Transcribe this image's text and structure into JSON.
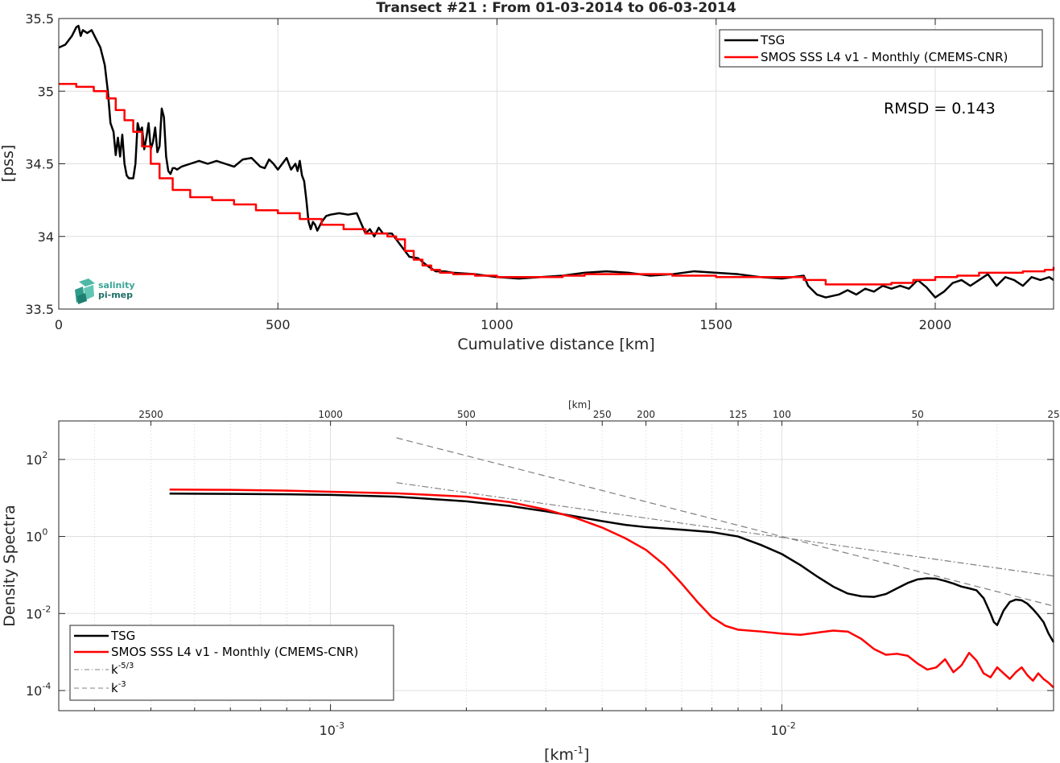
{
  "colors": {
    "tsg": "#000000",
    "smos": "#ff0000",
    "ref": "#808080"
  },
  "chart_data": [
    {
      "type": "line",
      "title": "Transect #21 : From 01-03-2014 to 06-03-2014",
      "xlabel": "Cumulative distance [km]",
      "ylabel": "[pss]",
      "xlim": [
        0,
        2270
      ],
      "ylim": [
        33.5,
        35.5
      ],
      "xticks": [
        0,
        500,
        1000,
        1500,
        2000
      ],
      "yticks": [
        33.5,
        34,
        34.5,
        35,
        35.5
      ],
      "grid": true,
      "legend_position": "top-right",
      "annotation": "RMSD = 0.143",
      "logo": {
        "line1": "salinity",
        "line2": "pi-mep"
      },
      "series": [
        {
          "name": "TSG",
          "color": "#000000",
          "x": [
            0,
            15,
            30,
            40,
            45,
            50,
            55,
            65,
            75,
            85,
            95,
            105,
            112,
            118,
            125,
            130,
            135,
            140,
            145,
            150,
            155,
            160,
            165,
            170,
            175,
            180,
            185,
            190,
            195,
            200,
            205,
            210,
            215,
            220,
            225,
            230,
            235,
            240,
            245,
            250,
            255,
            260,
            265,
            270,
            280,
            300,
            320,
            340,
            360,
            380,
            400,
            420,
            440,
            460,
            470,
            480,
            490,
            500,
            510,
            520,
            530,
            540,
            545,
            550,
            555,
            560,
            565,
            570,
            575,
            580,
            585,
            590,
            600,
            610,
            620,
            640,
            660,
            680,
            700,
            710,
            720,
            730,
            740,
            760,
            780,
            800,
            820,
            840,
            860,
            880,
            900,
            950,
            1000,
            1050,
            1100,
            1150,
            1200,
            1250,
            1300,
            1350,
            1400,
            1450,
            1500,
            1550,
            1600,
            1650,
            1700,
            1710,
            1730,
            1750,
            1780,
            1800,
            1820,
            1840,
            1860,
            1880,
            1900,
            1920,
            1940,
            1960,
            1980,
            2000,
            2020,
            2040,
            2060,
            2080,
            2100,
            2120,
            2140,
            2160,
            2180,
            2200,
            2220,
            2240,
            2260,
            2270
          ],
          "y": [
            35.3,
            35.32,
            35.38,
            35.44,
            35.45,
            35.38,
            35.42,
            35.4,
            35.42,
            35.36,
            35.3,
            35.18,
            35.0,
            34.78,
            34.72,
            34.56,
            34.68,
            34.55,
            34.7,
            34.5,
            34.42,
            34.4,
            34.4,
            34.4,
            34.5,
            34.78,
            34.72,
            34.75,
            34.6,
            34.68,
            34.78,
            34.6,
            34.65,
            34.75,
            34.58,
            34.62,
            34.88,
            34.82,
            34.55,
            34.45,
            34.43,
            34.47,
            34.47,
            34.46,
            34.48,
            34.5,
            34.52,
            34.5,
            34.52,
            34.5,
            34.48,
            34.53,
            34.54,
            34.48,
            34.47,
            34.53,
            34.5,
            34.46,
            34.5,
            34.54,
            34.46,
            34.5,
            34.45,
            34.52,
            34.42,
            34.38,
            34.25,
            34.1,
            34.05,
            34.1,
            34.08,
            34.04,
            34.1,
            34.14,
            34.15,
            34.16,
            34.15,
            34.16,
            34.02,
            34.05,
            34.0,
            34.06,
            34.02,
            34.02,
            33.94,
            33.86,
            33.85,
            33.8,
            33.76,
            33.76,
            33.75,
            33.74,
            33.72,
            33.71,
            33.72,
            33.73,
            33.75,
            33.76,
            33.75,
            33.73,
            33.74,
            33.76,
            33.75,
            33.74,
            33.72,
            33.71,
            33.73,
            33.66,
            33.6,
            33.58,
            33.6,
            33.63,
            33.6,
            33.64,
            33.62,
            33.66,
            33.64,
            33.66,
            33.64,
            33.7,
            33.65,
            33.58,
            33.62,
            33.68,
            33.7,
            33.66,
            33.7,
            33.74,
            33.66,
            33.72,
            33.7,
            33.66,
            33.72,
            33.7,
            33.72,
            33.7
          ]
        },
        {
          "name": "SMOS SSS L4 v1 - Monthly (CMEMS-CNR)",
          "color": "#ff0000",
          "x": [
            0,
            40,
            80,
            110,
            130,
            150,
            170,
            190,
            210,
            230,
            260,
            300,
            350,
            400,
            450,
            500,
            550,
            600,
            650,
            700,
            750,
            770,
            790,
            810,
            830,
            850,
            870,
            900,
            950,
            1000,
            1050,
            1100,
            1150,
            1200,
            1300,
            1400,
            1500,
            1600,
            1700,
            1750,
            1800,
            1850,
            1900,
            1950,
            2000,
            2050,
            2100,
            2150,
            2200,
            2250,
            2270
          ],
          "y": [
            35.05,
            35.03,
            35.0,
            34.95,
            34.87,
            34.8,
            34.72,
            34.62,
            34.5,
            34.4,
            34.32,
            34.27,
            34.25,
            34.22,
            34.18,
            34.16,
            34.12,
            34.08,
            34.05,
            34.02,
            34.0,
            33.98,
            33.9,
            33.84,
            33.8,
            33.77,
            33.75,
            33.74,
            33.73,
            33.72,
            33.72,
            33.72,
            33.73,
            33.74,
            33.74,
            33.73,
            33.72,
            33.72,
            33.7,
            33.67,
            33.67,
            33.67,
            33.68,
            33.7,
            33.72,
            33.73,
            33.75,
            33.75,
            33.76,
            33.77,
            33.79
          ]
        }
      ]
    },
    {
      "type": "line",
      "title": "",
      "xlabel": "[km-1]",
      "ylabel": "Density Spectra",
      "x_scale": "log",
      "y_scale": "log",
      "xlim": [
        0.00025,
        0.04
      ],
      "ylim": [
        3e-05,
        1000
      ],
      "x_major_ticks": [
        0.001,
        0.01
      ],
      "x_major_tick_labels": [
        {
          "base": "10",
          "exp": "-3"
        },
        {
          "base": "10",
          "exp": "-2"
        }
      ],
      "y_major_ticks": [
        0.0001,
        0.01,
        1,
        100
      ],
      "y_tick_labels": [
        {
          "base": "10",
          "exp": "-4"
        },
        {
          "base": "10",
          "exp": "-2"
        },
        {
          "base": "10",
          "exp": "0"
        },
        {
          "base": "10",
          "exp": "2"
        }
      ],
      "top_axis_label": "[km]",
      "top_axis_ticks": [
        2500,
        1000,
        500,
        250,
        200,
        125,
        100,
        50,
        25
      ],
      "grid": true,
      "legend_position": "bottom-left",
      "series": [
        {
          "name": "TSG",
          "color": "#000000",
          "dash": "solid",
          "x": [
            0.00044,
            0.0006,
            0.0008,
            0.001,
            0.0014,
            0.002,
            0.0025,
            0.003,
            0.0035,
            0.004,
            0.0045,
            0.005,
            0.006,
            0.007,
            0.008,
            0.009,
            0.01,
            0.011,
            0.012,
            0.013,
            0.014,
            0.015,
            0.016,
            0.017,
            0.018,
            0.019,
            0.02,
            0.021,
            0.022,
            0.023,
            0.024,
            0.025,
            0.026,
            0.027,
            0.028,
            0.029,
            0.0295,
            0.03,
            0.031,
            0.032,
            0.033,
            0.034,
            0.035,
            0.036,
            0.037,
            0.038,
            0.039,
            0.04
          ],
          "y": [
            13,
            12.8,
            12.5,
            12,
            10.8,
            8.2,
            6.2,
            4.5,
            3.3,
            2.5,
            2.0,
            1.75,
            1.5,
            1.3,
            1.0,
            0.6,
            0.35,
            0.18,
            0.09,
            0.05,
            0.033,
            0.028,
            0.027,
            0.032,
            0.045,
            0.062,
            0.077,
            0.082,
            0.08,
            0.07,
            0.06,
            0.05,
            0.045,
            0.04,
            0.025,
            0.01,
            0.006,
            0.005,
            0.012,
            0.02,
            0.023,
            0.022,
            0.018,
            0.013,
            0.009,
            0.006,
            0.003,
            0.0018
          ]
        },
        {
          "name": "SMOS SSS L4 v1 - Monthly (CMEMS-CNR)",
          "color": "#ff0000",
          "dash": "solid",
          "x": [
            0.00044,
            0.0006,
            0.0008,
            0.001,
            0.0014,
            0.002,
            0.0025,
            0.003,
            0.0035,
            0.004,
            0.0045,
            0.005,
            0.0055,
            0.006,
            0.0065,
            0.007,
            0.0075,
            0.008,
            0.009,
            0.01,
            0.011,
            0.012,
            0.013,
            0.014,
            0.015,
            0.016,
            0.017,
            0.018,
            0.019,
            0.02,
            0.021,
            0.022,
            0.023,
            0.024,
            0.025,
            0.026,
            0.027,
            0.028,
            0.029,
            0.03,
            0.031,
            0.032,
            0.033,
            0.034,
            0.035,
            0.036,
            0.037,
            0.038,
            0.039,
            0.04
          ],
          "y": [
            16.5,
            16.2,
            15.5,
            14.5,
            13.2,
            10.8,
            7.8,
            5.0,
            3.0,
            1.7,
            0.9,
            0.45,
            0.18,
            0.06,
            0.02,
            0.008,
            0.0048,
            0.0038,
            0.0034,
            0.003,
            0.0028,
            0.0032,
            0.0036,
            0.0034,
            0.0022,
            0.0012,
            0.00085,
            0.0009,
            0.0008,
            0.0005,
            0.00035,
            0.0004,
            0.00065,
            0.0003,
            0.00045,
            0.00095,
            0.0006,
            0.00028,
            0.00022,
            0.0004,
            0.00028,
            0.0002,
            0.0003,
            0.0004,
            0.00025,
            0.00018,
            0.00028,
            0.0002,
            0.00016,
            0.00012
          ]
        },
        {
          "name": "k-5/3",
          "legend_base": "k",
          "legend_exp": "-5/3",
          "color": "#808080",
          "dash": "dash-dot",
          "x": [
            0.0014,
            0.04
          ],
          "y": [
            25,
            0.094
          ]
        },
        {
          "name": "k-3",
          "legend_base": "k",
          "legend_exp": "-3",
          "color": "#808080",
          "dash": "dashed",
          "x": [
            0.0014,
            0.04
          ],
          "y": [
            364,
            0.0156
          ]
        }
      ]
    }
  ]
}
